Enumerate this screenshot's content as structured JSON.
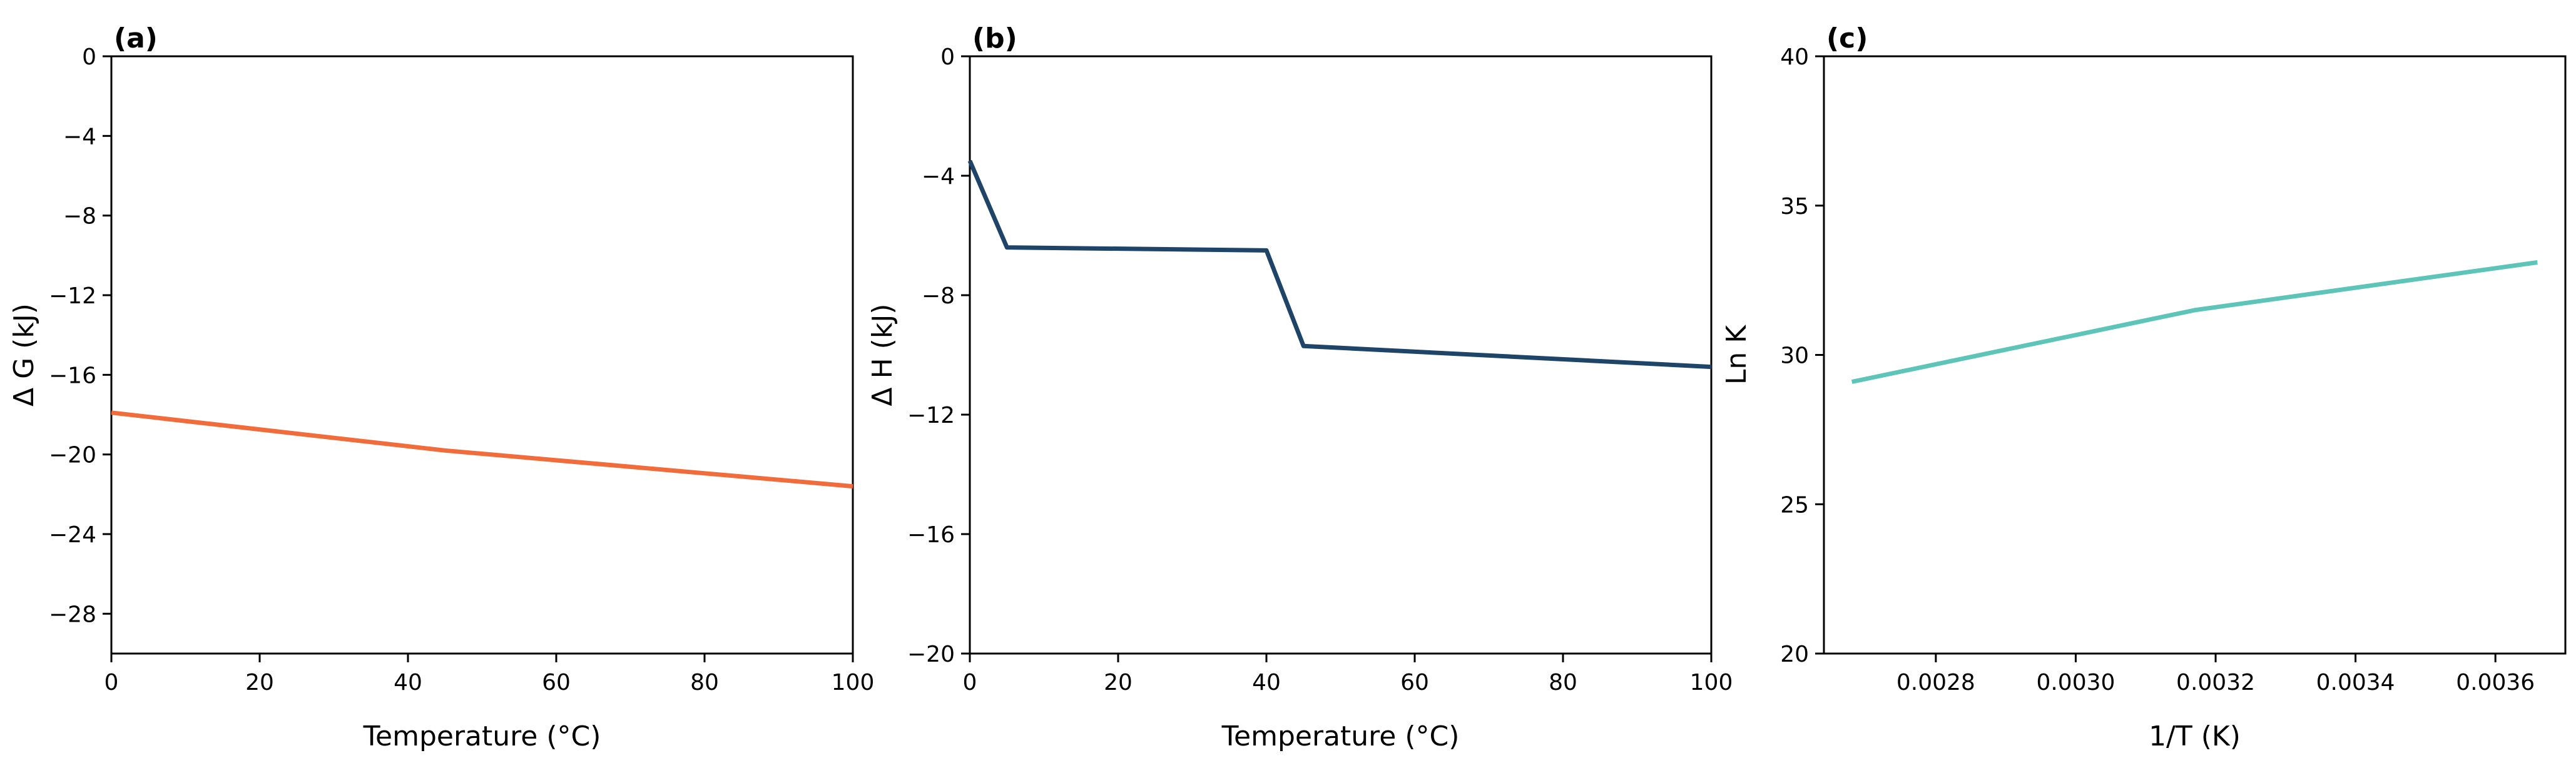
{
  "chart_data": [
    {
      "type": "line",
      "panel_label": "(a)",
      "title": "",
      "xlabel": "Temperature (°C)",
      "ylabel": "Δ G (kJ)",
      "xlim": [
        0,
        100
      ],
      "ylim": [
        -30,
        0
      ],
      "xticks": [
        0,
        20,
        40,
        60,
        80,
        100
      ],
      "xtick_labels": [
        "0",
        "20",
        "40",
        "60",
        "80",
        "100"
      ],
      "yticks": [
        0,
        -4,
        -8,
        -12,
        -16,
        -20,
        -24,
        -28
      ],
      "ytick_labels": [
        "0",
        "−4",
        "−8",
        "−12",
        "−16",
        "−20",
        "−24",
        "−28"
      ],
      "grid": false,
      "series": [
        {
          "color": "#f26b3a",
          "x": [
            0,
            45,
            100
          ],
          "y": [
            -17.9,
            -19.8,
            -21.6
          ]
        }
      ]
    },
    {
      "type": "line",
      "panel_label": "(b)",
      "title": "",
      "xlabel": "Temperature (°C)",
      "ylabel": "Δ H (kJ)",
      "xlim": [
        0,
        100
      ],
      "ylim": [
        -20,
        0
      ],
      "xticks": [
        0,
        20,
        40,
        60,
        80,
        100
      ],
      "xtick_labels": [
        "0",
        "20",
        "40",
        "60",
        "80",
        "100"
      ],
      "yticks": [
        0,
        -4,
        -8,
        -12,
        -16,
        -20
      ],
      "ytick_labels": [
        "0",
        "−4",
        "−8",
        "−12",
        "−16",
        "−20"
      ],
      "grid": false,
      "series": [
        {
          "color": "#1e4468",
          "x": [
            0,
            5,
            40,
            45,
            100
          ],
          "y": [
            -3.5,
            -6.4,
            -6.5,
            -9.7,
            -10.4
          ]
        }
      ]
    },
    {
      "type": "line",
      "panel_label": "(c)",
      "title": "",
      "xlabel": "1/T (K)",
      "ylabel": "Ln K",
      "xlim": [
        0.00264,
        0.0037
      ],
      "ylim": [
        20,
        40
      ],
      "xticks": [
        0.0028,
        0.003,
        0.0032,
        0.0034,
        0.0036
      ],
      "xtick_labels": [
        "0.0028",
        "0.0030",
        "0.0032",
        "0.0034",
        "0.0036"
      ],
      "yticks": [
        20,
        25,
        30,
        35,
        40
      ],
      "ytick_labels": [
        "20",
        "25",
        "30",
        "35",
        "40"
      ],
      "grid": false,
      "series": [
        {
          "color": "#5cc4b8",
          "x": [
            0.00268,
            0.00317,
            0.00366
          ],
          "y": [
            29.1,
            31.5,
            33.1
          ]
        }
      ]
    }
  ]
}
